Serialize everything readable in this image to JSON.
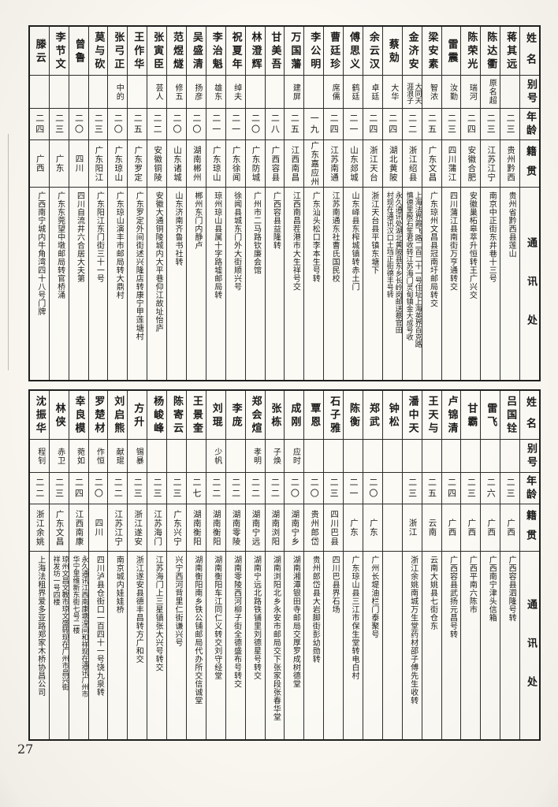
{
  "page": {
    "number": "27"
  },
  "colors": {
    "paper": "#faf8f1",
    "ink": "#1b1b1b",
    "grid": "#2e2c29"
  },
  "headers": {
    "name": "姓名",
    "alias": "别号",
    "age": "年龄",
    "native": "籍贯",
    "address": "通讯处"
  },
  "top_table": {
    "persons": [
      {
        "name": "蒋其远",
        "alias": "",
        "age": "二三",
        "native": "贵州黔西",
        "address": "贵州省黔西县莲山"
      },
      {
        "name": "陈达衢",
        "alias": "原名超",
        "age": "二三",
        "native": "江苏江宁",
        "address": "南京中正街东井巷十三号"
      },
      {
        "name": "陈荣光",
        "alias": "瑞河",
        "age": "二四",
        "native": "安徽合肥",
        "address": "安徽巢柘皋萃升恒转王广兴交"
      },
      {
        "name": "雷震",
        "alias": "汝勤",
        "age": "二三",
        "native": "四川蒲江",
        "address": "四川蒲江县南街万亨通转交"
      },
      {
        "name": "梁安素",
        "alias": "智浓",
        "age": "二五",
        "native": "广东文昌",
        "address": "广东琼州文昌县冠南圩邮局转交"
      },
      {
        "name": "金济安",
        "alias": "大同天\n涯浪子",
        "age": "二二",
        "native": "浙江绍县",
        "address": "上海法界霞飞路二百二十一号住址上海英界百克路\n慎德里殷石笙君收转江苏海门灵甸镇金大成号收"
      },
      {
        "name": "蔡勀",
        "alias": "大华",
        "age": "二四",
        "native": "湖北黄陂",
        "address": "永久通讯处湖北黄陂县东乡长岭岗邮送蔡官田\n村现在通讯汉口土垱正街德丰号转"
      },
      {
        "name": "余云汉",
        "alias": "卓廷",
        "age": "二四",
        "native": "浙江天台",
        "address": "浙江天台县平镇东塘下"
      },
      {
        "name": "傅思义",
        "alias": "鹤廷",
        "age": "二一",
        "native": "山东郯城",
        "address": "山东峄县东榨城镇转赤土门"
      },
      {
        "name": "曹廷珍",
        "alias": "席儒",
        "age": "二四",
        "native": "江苏南通",
        "address": "江苏南通东社曹氏国民校"
      },
      {
        "name": "李公明",
        "alias": "",
        "age": "一九",
        "native": "广东嘉应州",
        "address": "广东汕头松口李本生号转"
      },
      {
        "name": "万国藩",
        "alias": "建屏",
        "age": "二五",
        "native": "江西南昌",
        "address": "江西南昌茬港市大生祥号交"
      },
      {
        "name": "甘美吾",
        "alias": "",
        "age": "二八",
        "native": "广西容县",
        "address": "广西容县益隆转"
      },
      {
        "name": "林澄辉",
        "alias": "",
        "age": "二〇",
        "native": "广东防城",
        "address": "广州市二马路钦廉会馆"
      },
      {
        "name": "祝夏年",
        "alias": "绰夫",
        "age": "二一",
        "native": "广东徐闻",
        "address": "徐闻县城东门外大街顺兴号"
      },
      {
        "name": "李治魁",
        "alias": "雄东",
        "age": "二一",
        "native": "广东琼山",
        "address": "琼州琼山县属十字路墟邮局转"
      },
      {
        "name": "吴盛清",
        "alias": "扬彦",
        "age": "二〇",
        "native": "湖南郴州",
        "address": "郴州东门内静卢"
      },
      {
        "name": "范煜燧",
        "alias": "修五",
        "age": "二〇",
        "native": "山东诸城",
        "address": "山东济南齐鲁书社转"
      },
      {
        "name": "张寅臣",
        "alias": "芸人",
        "age": "二二",
        "native": "安徽铜陵",
        "address": "安徽大通铜陵城内大平巷仰江故址怡庐"
      },
      {
        "name": "王作华",
        "alias": "",
        "age": "二五",
        "native": "广东罗定",
        "address": "广东罗定外间街述兴隆店转康宁甲莲塘村"
      },
      {
        "name": "张弓正",
        "alias": "中的",
        "age": "二〇",
        "native": "广东琼山",
        "address": "广东琼山演丰市邮局转大鼎村"
      },
      {
        "name": "莫与砍",
        "alias": "",
        "age": "二三",
        "native": "广东阳江",
        "address": "广东阳江东门街三十一号"
      },
      {
        "name": "曾鲁",
        "alias": "",
        "age": "二〇",
        "native": "四川",
        "address": "四川自流井六合居大夫第"
      },
      {
        "name": "李节文",
        "alias": "",
        "age": "二三",
        "native": "广东",
        "address": "广东东莞望中墩邮局转官桥涌"
      },
      {
        "name": "滕云",
        "alias": "",
        "age": "二四",
        "native": "广西",
        "address": "广西南宁城内牛角湾四十八号门牌"
      }
    ]
  },
  "bottom_table": {
    "persons": [
      {
        "name": "吕国铨",
        "alias": "",
        "age": "二三",
        "native": "广西",
        "address": "广西容县泗隆号转"
      },
      {
        "name": "雷飞",
        "alias": "",
        "age": "二六",
        "native": "广西",
        "address": "广西南宁津头信箱"
      },
      {
        "name": "甘霸",
        "alias": "",
        "age": "二三",
        "native": "广西",
        "address": "广西平南六陈市"
      },
      {
        "name": "卢锦清",
        "alias": "",
        "age": "二四",
        "native": "广西",
        "address": "广西容县武扬元昌号转"
      },
      {
        "name": "王天与",
        "alias": "",
        "age": "二五",
        "native": "云南",
        "address": "云南大姚县七街仓东"
      },
      {
        "name": "潘中天",
        "alias": "",
        "age": "二三",
        "native": "浙江",
        "address": "浙江余姚南城万生堂药材邵子傅先生收转"
      },
      {
        "name": "钟松",
        "alias": "",
        "age": "",
        "native": "",
        "address": ""
      },
      {
        "name": "郑武",
        "alias": "",
        "age": "二〇",
        "native": "广东",
        "address": "广州长堤油栏门泰聚号"
      },
      {
        "name": "陈衡",
        "alias": "",
        "age": "二一",
        "native": "广东",
        "address": "广东琼山县三江市保生堂转电白村"
      },
      {
        "name": "石子雅",
        "alias": "",
        "age": "二三",
        "native": "四川巴县",
        "address": "四川巴县界石场"
      },
      {
        "name": "覃恩",
        "alias": "",
        "age": "二〇",
        "native": "贵州郎岱",
        "address": "贵州郎岱县大岩脚街彭幼勋转"
      },
      {
        "name": "成刚",
        "alias": "应时",
        "age": "二〇",
        "native": "湖南宁乡",
        "address": "湖南湘潭银田寺邮局交厚罗成树德堂"
      },
      {
        "name": "张栋",
        "alias": "子焕",
        "age": "二二",
        "native": "湖南浏阳",
        "address": "湖南浏阳北乡永安市邮局交下张家段张春华堂"
      },
      {
        "name": "郑会煊",
        "alias": "孝明",
        "age": "二二",
        "native": "湖南宁远",
        "address": "湖南宁远北路铁铺里刘德星号转交"
      },
      {
        "name": "李庞",
        "alias": "",
        "age": "二二",
        "native": "湖南零陵",
        "address": "湖南零陵西河柳子街全德盛布号转交"
      },
      {
        "name": "刘琨",
        "alias": "少帆",
        "age": "二二",
        "native": "湖南衡阳",
        "address": "湖南衡阳车江同仁义转交刘守经堂"
      },
      {
        "name": "王景奎",
        "alias": "",
        "age": "二七",
        "native": "湖南衡阳",
        "address": "湖南衡阳南乡铁公铺邮局代办所交信诚堂"
      },
      {
        "name": "陈寄云",
        "alias": "",
        "age": "二三",
        "native": "广东兴宁",
        "address": "兴宁西河背里仁街谦兴号"
      },
      {
        "name": "杨峻峰",
        "alias": "",
        "age": "二三",
        "native": "江苏海门",
        "address": "江苏海门上三星镇张大兴号转交"
      },
      {
        "name": "方升",
        "alias": "锡暴",
        "age": "二三",
        "native": "浙江遂安",
        "address": "浙江遂安县德丰昌转方广和交"
      },
      {
        "name": "刘启熊",
        "alias": "献琨",
        "age": "二二",
        "native": "江苏江宁",
        "address": "南京城内娃娃桥"
      },
      {
        "name": "罗楚材",
        "alias": "作恒",
        "age": "二〇",
        "native": "四川",
        "address": "四川泸县仓街口一百四十一号饶九泉转"
      },
      {
        "name": "幸良模",
        "alias": "菀如",
        "age": "二四",
        "native": "江西南康",
        "address": "永久通讯江西南康塘湟间和祥现在通讯广州市\n华宁里维新东街七号二楼"
      },
      {
        "name": "林侠",
        "alias": "赤卫",
        "age": "二三",
        "native": "广东文昌",
        "address": "琼州文昌文教市琼文盛转现在广州市昌兴街\n祥发坊一号四楼"
      },
      {
        "name": "沈振华",
        "alias": "程钊",
        "age": "二二",
        "native": "浙江余姚",
        "address": "上海法租界爱多亚路郑家木桥协昌公司"
      }
    ]
  }
}
